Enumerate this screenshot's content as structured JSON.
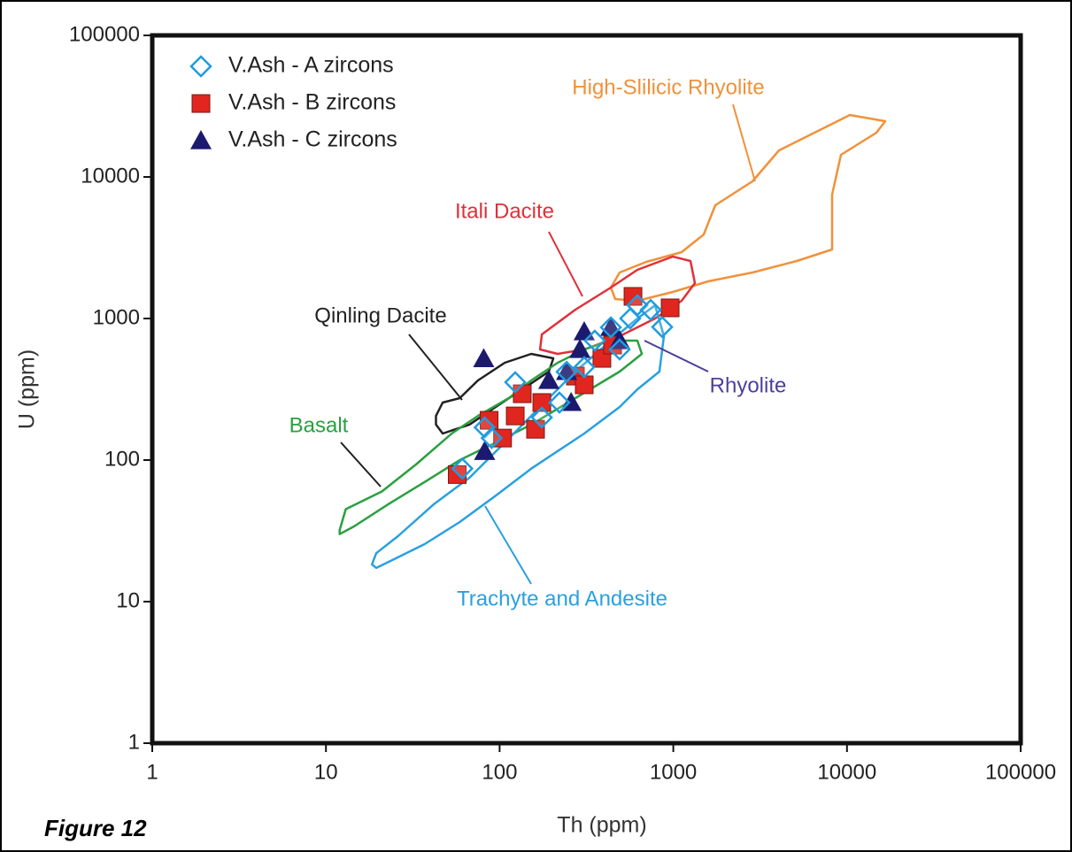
{
  "caption": "Figure 12",
  "chart_data": {
    "type": "scatter",
    "x_label": "Th (ppm)",
    "y_label": "U (ppm)",
    "log_x": true,
    "log_y": true,
    "xlim": [
      1,
      100000
    ],
    "ylim": [
      1,
      100000
    ],
    "xticks": [
      1,
      10,
      100,
      1000,
      10000,
      100000
    ],
    "yticks": [
      1,
      10,
      100,
      1000,
      10000,
      100000
    ],
    "legend": "upper left",
    "series": [
      {
        "name": "V.Ash - A zircons",
        "marker": "diamond",
        "color": "#1e9ce0",
        "x": [
          61,
          82,
          123,
          175,
          221,
          307,
          353,
          437,
          491,
          565,
          621,
          741,
          863,
          243,
          90
        ],
        "y": [
          87,
          170,
          355,
          200,
          255,
          453,
          698,
          866,
          604,
          1000,
          1240,
          1150,
          870,
          420,
          143
        ]
      },
      {
        "name": "V.Ash - B zircons",
        "marker": "square",
        "color": "#e0261e",
        "x": [
          57,
          87,
          104,
          123,
          135,
          161,
          175,
          273,
          307,
          388,
          447,
          586,
          959
        ],
        "y": [
          79,
          191,
          143,
          205,
          294,
          165,
          255,
          392,
          340,
          523,
          649,
          1433,
          1189
        ]
      },
      {
        "name": "V.Ash - C zircons",
        "marker": "triangle",
        "color": "#1c1a6e",
        "x": [
          81,
          82,
          192,
          243,
          258,
          290,
          307,
          437,
          491
        ],
        "y": [
          520,
          115,
          365,
          422,
          255,
          604,
          806,
          866,
          698
        ]
      }
    ],
    "regions": [
      {
        "name": "High-Slilicic Rhyolite",
        "color": "#f0913a",
        "x": [
          437,
          491,
          698,
          1117,
          1497,
          1745,
          2856,
          4060,
          10380,
          16600,
          14760,
          9230,
          8210,
          8210,
          5140,
          2856,
          1588,
          993,
          621,
          463
        ],
        "y": [
          1655,
          2113,
          2512,
          2943,
          3926,
          6310,
          9304,
          15400,
          27380,
          24770,
          20540,
          14330,
          7500,
          3073,
          2548,
          2113,
          1830,
          1540,
          1334,
          1372
        ]
      },
      {
        "name": "Itali Dacite",
        "color": "#e0303a",
        "x": [
          171,
          175,
          273,
          437,
          621,
          993,
          1256,
          1331,
          1117,
          785,
          491,
          307,
          216
        ],
        "y": [
          604,
          772,
          1155,
          1655,
          2207,
          2738,
          2548,
          1778,
          1334,
          1000,
          750,
          604,
          562
        ]
      },
      {
        "name": "Qinling Dacite",
        "color": "#222222",
        "x": [
          43,
          47,
          59,
          75,
          107,
          152,
          204,
          192,
          135,
          95,
          67,
          47,
          43
        ],
        "y": [
          205,
          255,
          274,
          365,
          487,
          562,
          523,
          422,
          316,
          237,
          178,
          154,
          178
        ]
      },
      {
        "name": "Basalt",
        "color": "#2aa040",
        "x": [
          12,
          13,
          21,
          33,
          53,
          75,
          113,
          152,
          216,
          307,
          437,
          621,
          659,
          491,
          273,
          152,
          95,
          59,
          37,
          23,
          14.5,
          12
        ],
        "y": [
          32,
          45,
          60,
          93,
          154,
          205,
          274,
          365,
          487,
          604,
          698,
          698,
          562,
          422,
          274,
          178,
          133,
          100,
          70,
          49,
          34,
          30
        ]
      },
      {
        "name": "Trachyte and Andesite",
        "color": "#2aa0e0",
        "x": [
          18.4,
          19.5,
          26,
          42,
          67,
          107,
          171,
          273,
          437,
          621,
          785,
          883,
          832,
          621,
          491,
          307,
          152,
          95,
          59,
          37,
          23,
          19.5
        ],
        "y": [
          18.3,
          22,
          29,
          49,
          75,
          133,
          237,
          422,
          698,
          1000,
          1240,
          750,
          422,
          316,
          237,
          154,
          87,
          56,
          36.5,
          25.5,
          19.1,
          17.3
        ]
      }
    ],
    "annotations": [
      {
        "text": "Rhyolite",
        "color": "#4b3f9e"
      }
    ]
  }
}
